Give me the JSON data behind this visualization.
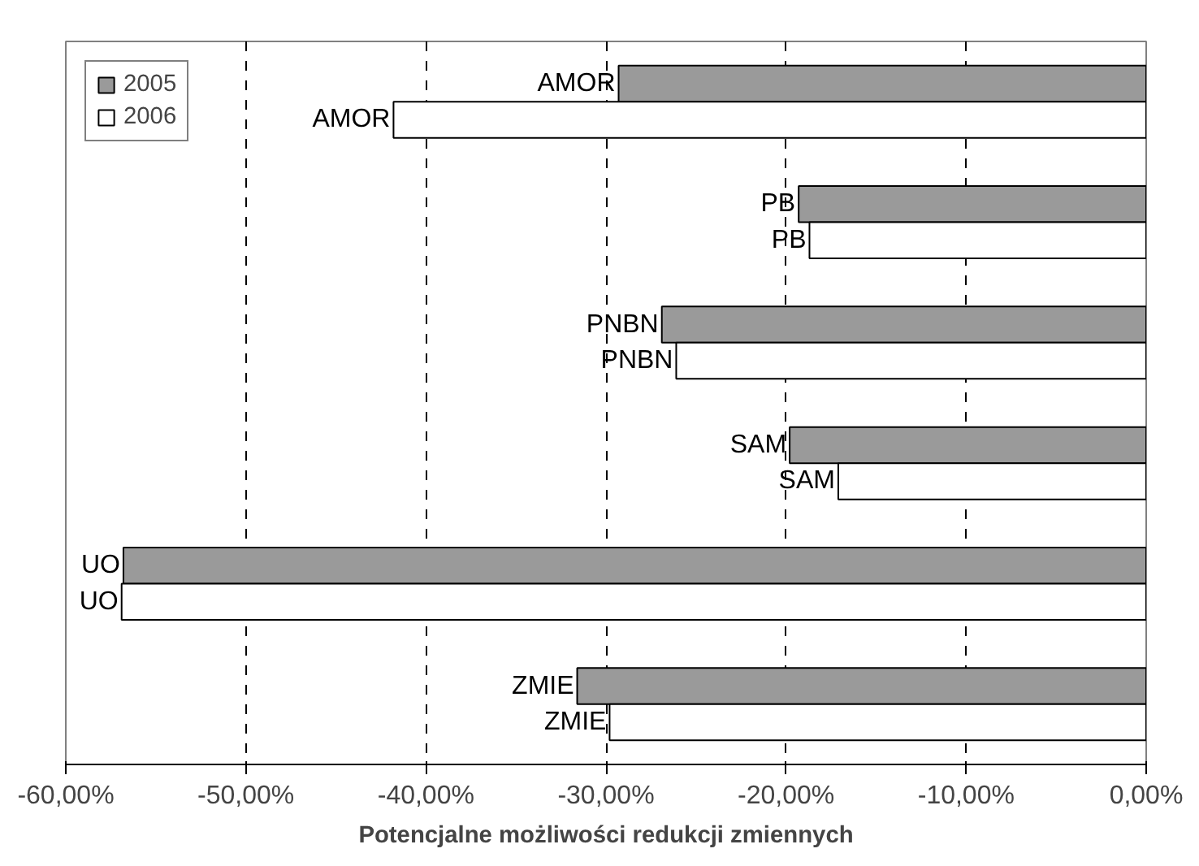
{
  "chart_data": {
    "type": "bar",
    "orientation": "horizontal",
    "xlabel": "Potencjalne możliwości redukcji zmiennych",
    "categories": [
      "AMOR",
      "PB",
      "PNBN",
      "SAM",
      "UO",
      "ZMIE"
    ],
    "series": [
      {
        "name": "2005",
        "color": "#9a9a9a",
        "values": [
          -29.3,
          -19.3,
          -26.9,
          -19.8,
          -56.8,
          -31.6
        ]
      },
      {
        "name": "2006",
        "color": "#ffffff",
        "values": [
          -41.8,
          -18.7,
          -26.1,
          -17.1,
          -56.9,
          -29.8
        ]
      }
    ],
    "xlim": [
      -60,
      0
    ],
    "xticks": [
      {
        "value": -60,
        "label": "-60,00%"
      },
      {
        "value": -50,
        "label": "-50,00%"
      },
      {
        "value": -40,
        "label": "-40,00%"
      },
      {
        "value": -30,
        "label": "-30,00%"
      },
      {
        "value": -20,
        "label": "-20,00%"
      },
      {
        "value": -10,
        "label": "-10,00%"
      },
      {
        "value": 0,
        "label": "0,00%"
      }
    ],
    "grid": "x",
    "legend": "top left",
    "tick_labels": "x"
  }
}
